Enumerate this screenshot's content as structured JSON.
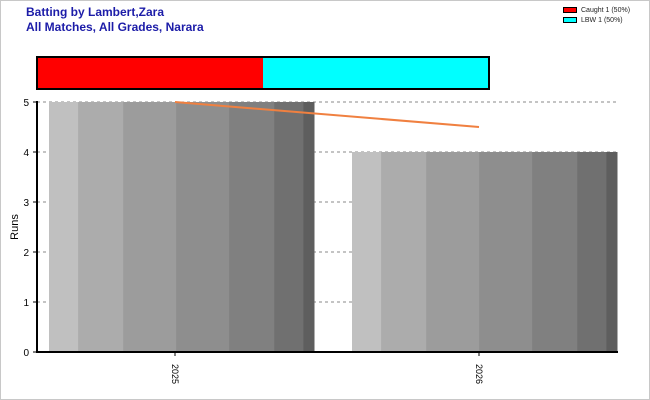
{
  "header": {
    "title_line1": "Batting by Lambert,Zara",
    "title_line2": "All Matches, All Grades, Narara"
  },
  "legend": [
    {
      "label": "Caught 1 (50%)",
      "color": "#ff0000"
    },
    {
      "label": "LBW 1 (50%)",
      "color": "#00ffff"
    }
  ],
  "chart_data": {
    "type": "bar",
    "title": "Batting by Lambert,Zara",
    "subtitle": "All Matches, All Grades, Narara",
    "categories": [
      "2025",
      "2026"
    ],
    "values": [
      5,
      4
    ],
    "ylabel": "Runs",
    "xlabel": "",
    "ylim": [
      0,
      5
    ],
    "yticks": [
      "0",
      "1",
      "2",
      "3",
      "4",
      "5"
    ],
    "grid": true,
    "trend_line": {
      "start": 5,
      "end": 4.5,
      "color": "#f08040"
    },
    "dismissal_bar": [
      {
        "label": "Caught",
        "count": 1,
        "percent": 50,
        "color": "#ff0000"
      },
      {
        "label": "LBW",
        "count": 1,
        "percent": 50,
        "color": "#00ffff"
      }
    ],
    "legend_position": "top-right"
  }
}
